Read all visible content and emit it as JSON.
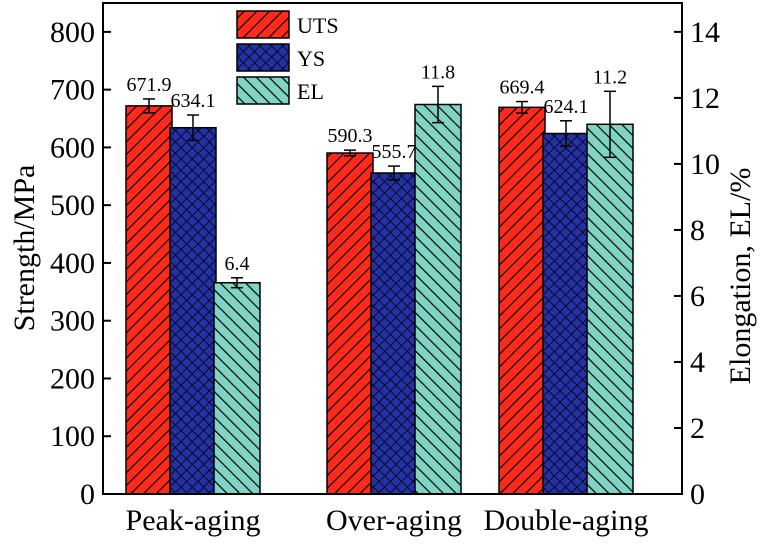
{
  "chart_data": {
    "type": "bar",
    "categories": [
      "Peak-aging",
      "Over-aging",
      "Double-aging"
    ],
    "series": [
      {
        "name": "UTS",
        "axis": "left",
        "values": [
          671.9,
          590.3,
          669.4
        ],
        "errors": [
          12,
          5,
          10
        ],
        "labels": [
          "671.9",
          "590.3",
          "669.4"
        ],
        "color": "#ff2a1a",
        "pattern": "diagonal-hatch"
      },
      {
        "name": "YS",
        "axis": "left",
        "values": [
          634.1,
          555.7,
          624.1
        ],
        "errors": [
          22,
          12,
          22
        ],
        "labels": [
          "634.1",
          "555.7",
          "624.1"
        ],
        "color": "#2431a6",
        "pattern": "crosshatch"
      },
      {
        "name": "EL",
        "axis": "right",
        "values": [
          6.4,
          11.8,
          11.2
        ],
        "errors": [
          0.15,
          0.55,
          1.0
        ],
        "labels": [
          "6.4",
          "11.8",
          "11.2"
        ],
        "color": "#7fd4c4",
        "pattern": "reverse-diagonal-hatch"
      }
    ],
    "ylabel": "Strength/MPa",
    "y2label": "Elongation, EL/%",
    "ylim": [
      0,
      850
    ],
    "y2lim": [
      0,
      14.875
    ],
    "yticks": [
      0,
      100,
      200,
      300,
      400,
      500,
      600,
      700,
      800
    ],
    "y2ticks": [
      0,
      2,
      4,
      6,
      8,
      10,
      12,
      14
    ],
    "grid": false,
    "legend": "top-center"
  }
}
